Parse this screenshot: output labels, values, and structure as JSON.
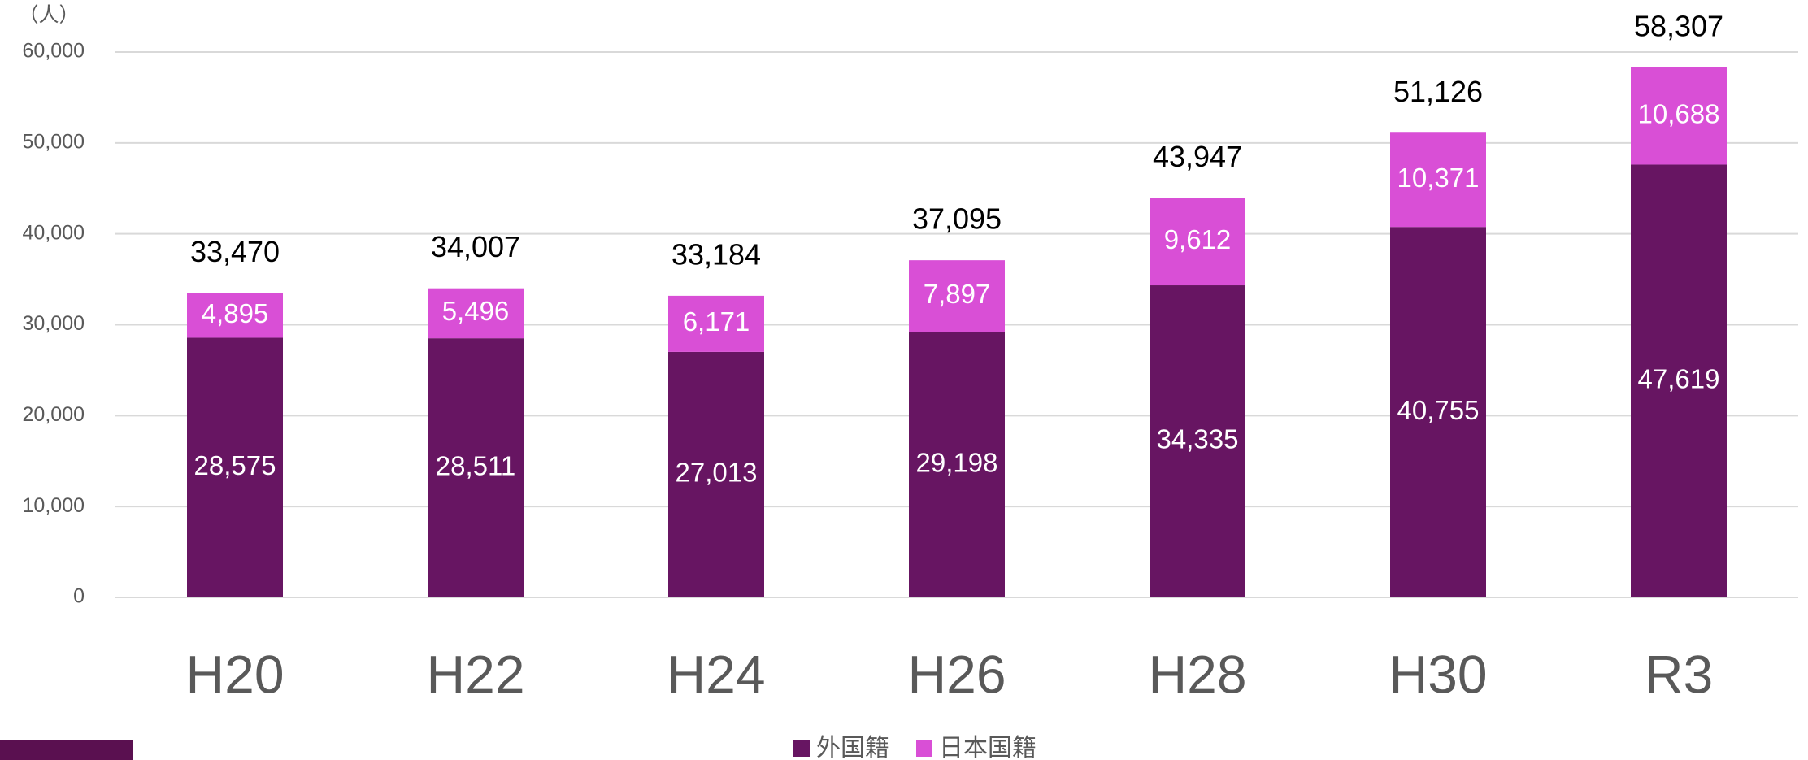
{
  "chart_data": {
    "type": "stacked_bar",
    "y_label": "（人）",
    "categories": [
      "H20",
      "H22",
      "H24",
      "H26",
      "H28",
      "H30",
      "R3"
    ],
    "series": [
      {
        "name": "外国籍",
        "color": "#671562",
        "values": [
          28575,
          28511,
          27013,
          29198,
          34335,
          40755,
          47619
        ],
        "value_labels": [
          "28,575",
          "28,511",
          "27,013",
          "29,198",
          "34,335",
          "40,755",
          "47,619"
        ]
      },
      {
        "name": "日本国籍",
        "color": "#d94fd6",
        "values": [
          4895,
          5496,
          6171,
          7897,
          9612,
          10371,
          10688
        ],
        "value_labels": [
          "4,895",
          "5,496",
          "6,171",
          "7,897",
          "9,612",
          "10,371",
          "10,688"
        ]
      }
    ],
    "totals": [
      33470,
      34007,
      33184,
      37095,
      43947,
      51126,
      58307
    ],
    "total_labels": [
      "33,470",
      "34,007",
      "33,184",
      "37,095",
      "43,947",
      "51,126",
      "58,307"
    ],
    "ylim": [
      0,
      60000
    ],
    "yticks": [
      0,
      {
        "value": 10000,
        "label": "10,000"
      },
      {
        "value": 20000,
        "label": "20,000"
      },
      {
        "value": 30000,
        "label": "30,000"
      },
      {
        "value": 40000,
        "label": "40,000"
      },
      {
        "value": 50000,
        "label": "50,000"
      },
      {
        "value": 60000,
        "label": "60,000"
      }
    ],
    "grid": true,
    "legend": "bottom"
  }
}
